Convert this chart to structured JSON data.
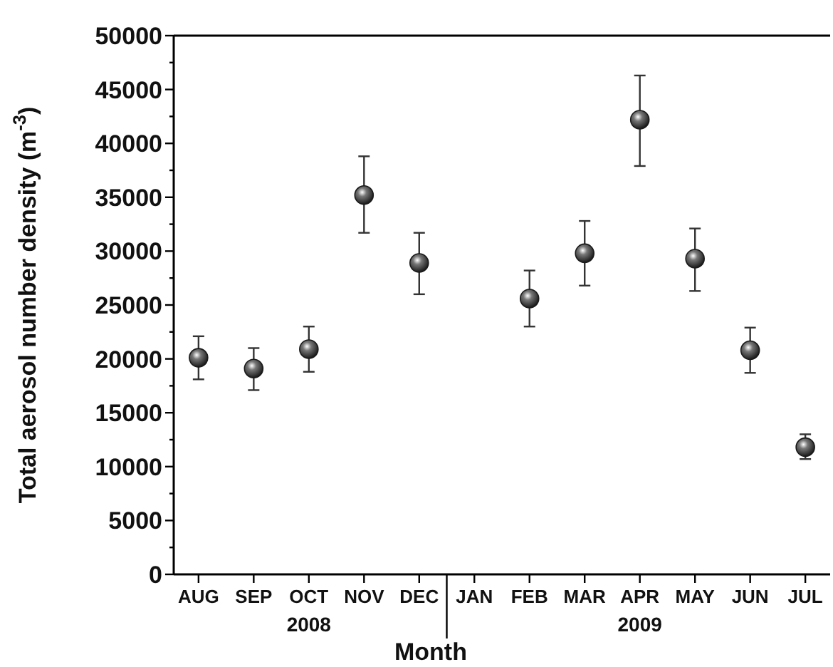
{
  "chart_data": {
    "type": "scatter",
    "categories": [
      "AUG",
      "SEP",
      "OCT",
      "NOV",
      "DEC",
      "JAN",
      "FEB",
      "MAR",
      "APR",
      "MAY",
      "JUN",
      "JUL"
    ],
    "values": [
      20100,
      19100,
      20900,
      35200,
      28900,
      null,
      25600,
      29800,
      42200,
      29300,
      20800,
      11800
    ],
    "errors": [
      [
        18100,
        22100
      ],
      [
        17100,
        21000
      ],
      [
        18800,
        23000
      ],
      [
        31700,
        38800
      ],
      [
        26000,
        31700
      ],
      null,
      [
        23000,
        28200
      ],
      [
        26800,
        32800
      ],
      [
        37900,
        46300
      ],
      [
        26300,
        32100
      ],
      [
        18700,
        22900
      ],
      [
        10700,
        13000
      ]
    ],
    "color": "#1a1a1a",
    "marker": "circle",
    "xlabel": "Month",
    "ylabel": "Total aerosol number density (m$^{-3}$)",
    "ylim": [
      0,
      50000
    ],
    "yticks": [
      0,
      {
        "value": 2500,
        "label": null
      },
      5000,
      {
        "value": 7500,
        "label": null
      },
      10000,
      {
        "value": 12500,
        "label": null
      },
      15000,
      {
        "value": 17500,
        "label": null
      },
      20000,
      {
        "value": 22500,
        "label": null
      },
      25000,
      {
        "value": 27500,
        "label": null
      },
      30000,
      {
        "value": 32500,
        "label": null
      },
      35000,
      {
        "value": 37500,
        "label": null
      },
      40000,
      {
        "value": 42500,
        "label": null
      },
      45000,
      {
        "value": 47500,
        "label": null
      },
      50000
    ],
    "annotations": [
      "2008",
      "2009"
    ],
    "grid": false
  }
}
